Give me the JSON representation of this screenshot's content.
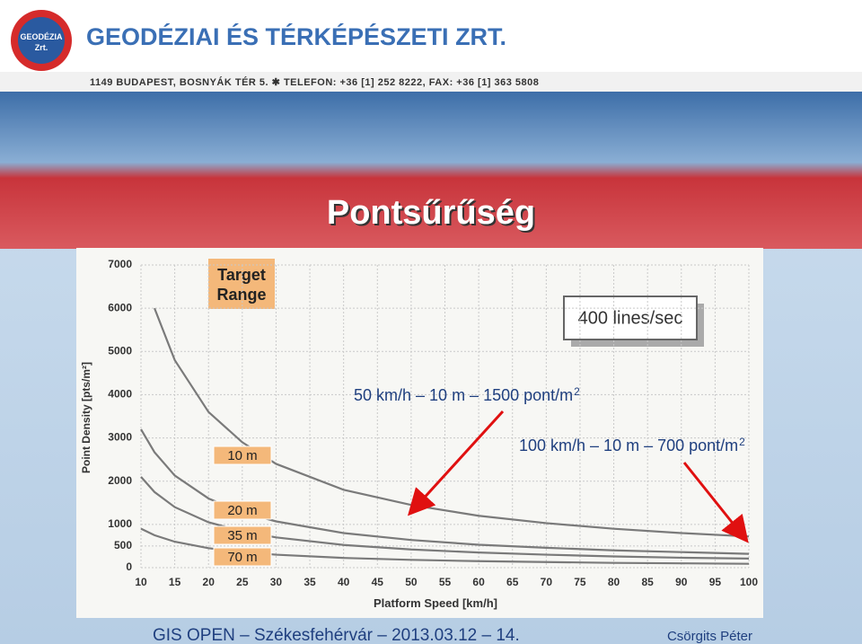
{
  "header": {
    "logo_text": "GEODÉZIA",
    "logo_sub": "Zrt.",
    "company": "GEODÉZIAI ÉS TÉRKÉPÉSZETI ZRT.",
    "address": "1149 BUDAPEST, BOSNYÁK TÉR 5. ✱ TELEFON: +36 [1] 252 8222, FAX: +36 [1] 363 5808"
  },
  "slide_title": "Pontsűrűség",
  "chart_data": {
    "type": "line",
    "x_label": "Platform Speed [km/h]",
    "y_label": "Point Density [pts/m²]",
    "box_label": "Target Range",
    "badge": "400 lines/sec",
    "x": [
      10,
      12,
      15,
      20,
      25,
      30,
      40,
      50,
      60,
      70,
      80,
      90,
      100
    ],
    "series": [
      {
        "name": "10 m",
        "color": "#7a7a7a",
        "values": [
          null,
          6000,
          4800,
          3600,
          2900,
          2400,
          1800,
          1450,
          1200,
          1030,
          900,
          800,
          720
        ]
      },
      {
        "name": "20 m",
        "color": "#7a7a7a",
        "values": [
          3200,
          2670,
          2130,
          1600,
          1280,
          1070,
          800,
          640,
          530,
          460,
          400,
          360,
          320
        ]
      },
      {
        "name": "35 m",
        "color": "#7a7a7a",
        "values": [
          2100,
          1750,
          1400,
          1050,
          840,
          700,
          525,
          420,
          350,
          300,
          260,
          230,
          210
        ]
      },
      {
        "name": "70 m",
        "color": "#7a7a7a",
        "values": [
          900,
          750,
          600,
          450,
          360,
          300,
          225,
          180,
          150,
          130,
          110,
          100,
          90
        ]
      }
    ],
    "xlim": [
      10,
      100
    ],
    "ylim": [
      0,
      7000
    ],
    "xticks": [
      10,
      15,
      20,
      25,
      30,
      35,
      40,
      45,
      50,
      55,
      60,
      65,
      70,
      75,
      80,
      85,
      90,
      95,
      100
    ],
    "yticks": [
      0,
      500,
      1000,
      2000,
      3000,
      4000,
      5000,
      6000,
      7000
    ],
    "grid": true,
    "annotations": [
      {
        "text": "50 km/h – 10 m – 1500 pont/m",
        "sup": "2"
      },
      {
        "text": "100 km/h – 10 m – 700 pont/m",
        "sup": "2"
      }
    ]
  },
  "footer": {
    "left": "GIS OPEN – Székesfehérvár – 2013.03.12 – 14.",
    "right": "Csörgits Péter"
  }
}
